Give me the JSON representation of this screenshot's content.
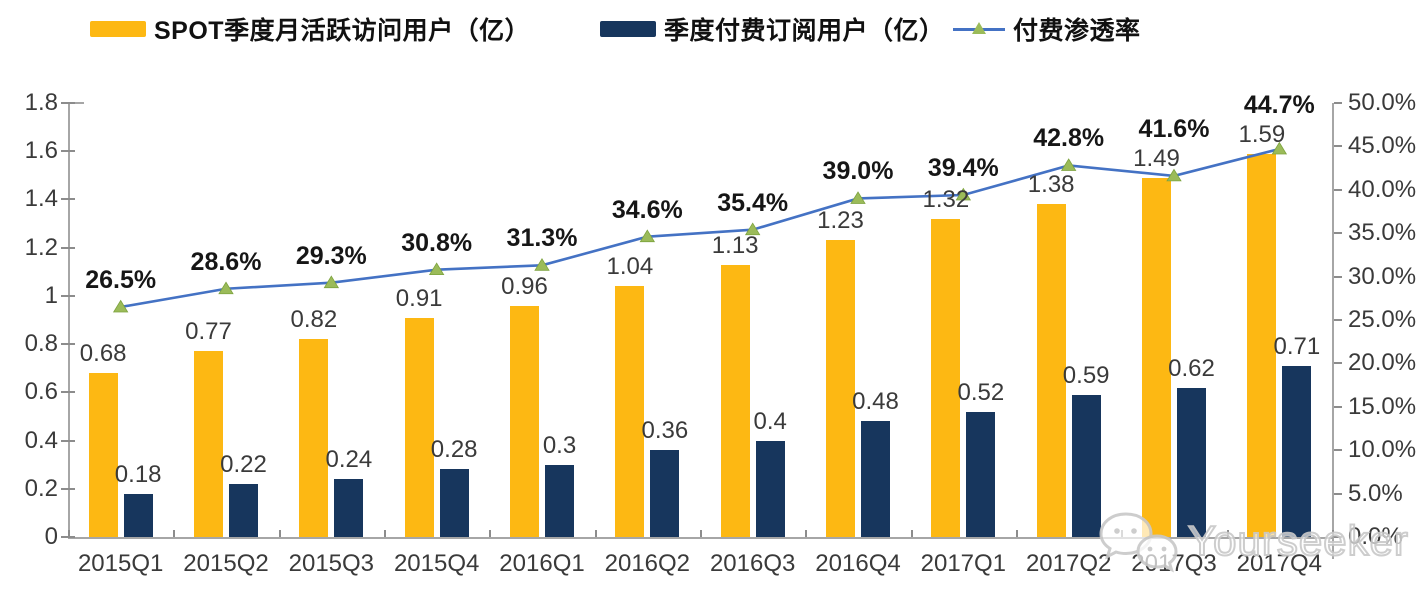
{
  "legend": [
    {
      "label": "SPOT季度月活跃访问用户（亿）",
      "swatch": "bar-swatch",
      "color": "#FDB813"
    },
    {
      "label": "季度付费订阅用户（亿）",
      "swatch": "bar-swatch",
      "color": "#17365D"
    },
    {
      "label": "付费渗透率",
      "swatch": "line-marker-swatch",
      "line_color": "#4472C4",
      "marker_color": "#9BBB59"
    }
  ],
  "chart_data": {
    "type": "bar",
    "subtype": "grouped bars + line on secondary axis",
    "categories": [
      "2015Q1",
      "2015Q2",
      "2015Q3",
      "2015Q4",
      "2016Q1",
      "2016Q2",
      "2016Q3",
      "2016Q4",
      "2017Q1",
      "2017Q2",
      "2017Q3",
      "2017Q4"
    ],
    "series": [
      {
        "name": "SPOT季度月活跃访问用户（亿）",
        "type": "bar",
        "axis": "left",
        "color": "#FDB813",
        "values": [
          0.68,
          0.77,
          0.82,
          0.91,
          0.96,
          1.04,
          1.13,
          1.23,
          1.32,
          1.38,
          1.49,
          1.59
        ],
        "labels": [
          "0.68",
          "0.77",
          "0.82",
          "0.91",
          "0.96",
          "1.04",
          "1.13",
          "1.23",
          "1.32",
          "1.38",
          "1.49",
          "1.59"
        ]
      },
      {
        "name": "季度付费订阅用户（亿）",
        "type": "bar",
        "axis": "left",
        "color": "#17365D",
        "values": [
          0.18,
          0.22,
          0.24,
          0.28,
          0.3,
          0.36,
          0.4,
          0.48,
          0.52,
          0.59,
          0.62,
          0.71
        ],
        "labels": [
          "0.18",
          "0.22",
          "0.24",
          "0.28",
          "0.3",
          "0.36",
          "0.4",
          "0.48",
          "0.52",
          "0.59",
          "0.62",
          "0.71"
        ]
      },
      {
        "name": "付费渗透率",
        "type": "line",
        "axis": "right",
        "color": "#4472C4",
        "marker": "triangle",
        "marker_color": "#9BBB59",
        "values": [
          26.5,
          28.6,
          29.3,
          30.8,
          31.3,
          34.6,
          35.4,
          39.0,
          39.4,
          42.8,
          41.6,
          44.7
        ],
        "labels": [
          "26.5%",
          "28.6%",
          "29.3%",
          "30.8%",
          "31.3%",
          "34.6%",
          "35.4%",
          "39.0%",
          "39.4%",
          "42.8%",
          "41.6%",
          "44.7%"
        ]
      }
    ],
    "left_axis": {
      "min": 0,
      "max": 1.8,
      "step": 0.2,
      "ticks": [
        "0",
        "0.2",
        "0.4",
        "0.6",
        "0.8",
        "1",
        "1.2",
        "1.4",
        "1.6",
        "1.8"
      ]
    },
    "right_axis": {
      "min": 0,
      "max": 50,
      "step": 5,
      "ticks": [
        "0.0%",
        "5.0%",
        "10.0%",
        "15.0%",
        "20.0%",
        "25.0%",
        "30.0%",
        "35.0%",
        "40.0%",
        "45.0%",
        "50.0%"
      ]
    },
    "grid": false,
    "legend_position": "top",
    "axis_color": "#a6a6a6"
  },
  "watermark": {
    "text": "Yourseeker",
    "icon": "wechat-icon"
  }
}
